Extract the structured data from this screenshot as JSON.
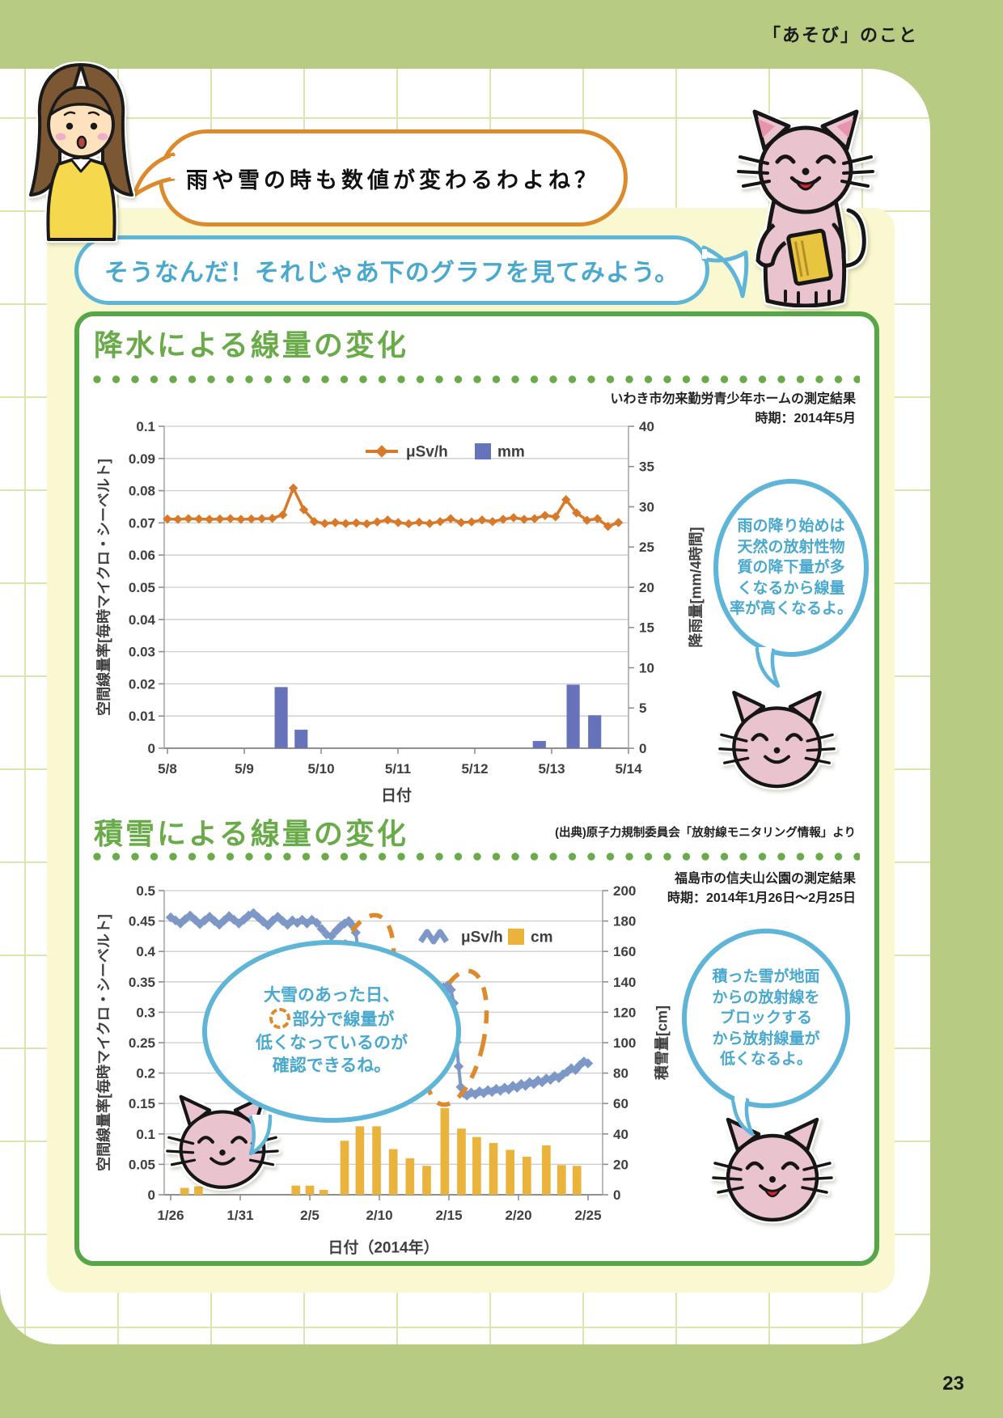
{
  "page": {
    "header": "「あそび」のこと",
    "page_number": "23"
  },
  "girl_bubble": {
    "text": "雨や雪の時も数値が変わるわよね？"
  },
  "cat_bubble": {
    "text": "そうなんだ！それじゃあ下のグラフを見てみよう。"
  },
  "notes": {
    "rain": "雨の降り始めは\n天然の放射性物\n質の降下量が多\nくなるから線量\n率が高くなるよ。",
    "snow_left_lines": [
      "大雪のあった日、",
      "部分で線量が",
      "低くなっているのが",
      "確認できるね。"
    ],
    "snow_right": "積った雪が地面\nからの放射線を\nブロックする\nから放射線量が\n低くなるよ。"
  },
  "colors": {
    "background_olive": "#b8cb83",
    "panel_yellow": "#faf8d0",
    "green_accent": "#68ab48",
    "card_border": "#55a748",
    "bubble_blue": "#5fb5d7",
    "bubble_orange": "#dd8a2b",
    "line_orange": "#d8792a",
    "bar_blue": "#6673bb",
    "line_blue": "#7d97c6",
    "bar_yellow": "#eab43c"
  },
  "chart_data": [
    {
      "type": "line+bar",
      "title": "降水による線量の変化",
      "caption": [
        "いわき市勿来勤労青少年ホームの測定結果",
        "時期：2014年5月"
      ],
      "xlabel": "日付",
      "ylabel_left": "空間線量率[毎時マイクロ・シーベルト]",
      "ylabel_right": "降雨量[mm/4時間]",
      "ylim_left": [
        0,
        0.1
      ],
      "yticks_left": [
        0,
        0.01,
        0.02,
        0.03,
        0.04,
        0.05,
        0.06,
        0.07,
        0.08,
        0.09,
        0.1
      ],
      "ylim_right": [
        0,
        40
      ],
      "yticks_right": [
        0,
        5,
        10,
        15,
        20,
        25,
        30,
        35,
        40
      ],
      "x_categories": [
        "5/8",
        "5/9",
        "5/10",
        "5/11",
        "5/12",
        "5/13",
        "5/14"
      ],
      "x_category_days": [
        0,
        1,
        2,
        3,
        4,
        5,
        6
      ],
      "grid": true,
      "legend": [
        "μSv/h",
        "mm"
      ],
      "line_series": {
        "name": "μSv/h",
        "color": "#d8792a",
        "x_start_day": 0.0,
        "x_step_day": 0.1365,
        "values": [
          0.0712,
          0.0711,
          0.0713,
          0.0712,
          0.0711,
          0.0712,
          0.0713,
          0.0711,
          0.0712,
          0.0713,
          0.0714,
          0.0725,
          0.0808,
          0.0741,
          0.0704,
          0.0698,
          0.0701,
          0.0698,
          0.07,
          0.0697,
          0.0703,
          0.0709,
          0.0701,
          0.0697,
          0.0702,
          0.0698,
          0.0704,
          0.0713,
          0.0701,
          0.0703,
          0.0709,
          0.0704,
          0.0711,
          0.0716,
          0.0711,
          0.0713,
          0.0723,
          0.0719,
          0.0772,
          0.0731,
          0.0708,
          0.0713,
          0.0689,
          0.0701
        ]
      },
      "bar_series": {
        "name": "mm",
        "color": "#6673bb",
        "bar_width_days": 0.17,
        "points": [
          [
            1.48,
            7.6
          ],
          [
            1.74,
            2.3
          ],
          [
            4.84,
            0.9
          ],
          [
            5.28,
            7.9
          ],
          [
            5.56,
            4.1
          ]
        ]
      }
    },
    {
      "type": "line+bar",
      "title": "積雪による線量の変化",
      "source": "(出典)原子力規制委員会「放射線モニタリング情報」より",
      "caption": [
        "福島市の信夫山公園の測定結果",
        "時期：2014年1月26日～2月25日"
      ],
      "xlabel": "日付（2014年）",
      "ylabel_left": "空間線量率[毎時マイクロ・シーベルト]",
      "ylabel_right": "積雪量[cm]",
      "ylim_left": [
        0,
        0.5
      ],
      "yticks_left": [
        0,
        0.05,
        0.1,
        0.15,
        0.2,
        0.25,
        0.3,
        0.35,
        0.4,
        0.45,
        0.5
      ],
      "ylim_right": [
        0,
        200
      ],
      "yticks_right": [
        0,
        20,
        40,
        60,
        80,
        100,
        120,
        140,
        160,
        180,
        200
      ],
      "x_categories": [
        "1/26",
        "1/31",
        "2/5",
        "2/10",
        "2/15",
        "2/20",
        "2/25"
      ],
      "x_category_days": [
        0,
        5,
        10,
        15,
        20,
        25,
        30
      ],
      "grid": true,
      "legend": [
        "μSv/h",
        "cm"
      ],
      "line_series": {
        "name": "μSv/h",
        "color": "#7d97c6",
        "points": [
          [
            0,
            0.456
          ],
          [
            0.35,
            0.451
          ],
          [
            0.7,
            0.446
          ],
          [
            1.05,
            0.453
          ],
          [
            1.4,
            0.459
          ],
          [
            1.75,
            0.452
          ],
          [
            2.1,
            0.445
          ],
          [
            2.45,
            0.451
          ],
          [
            2.8,
            0.457
          ],
          [
            3.15,
            0.45
          ],
          [
            3.5,
            0.444
          ],
          [
            3.85,
            0.451
          ],
          [
            4.2,
            0.458
          ],
          [
            4.55,
            0.452
          ],
          [
            4.9,
            0.446
          ],
          [
            5.25,
            0.452
          ],
          [
            5.6,
            0.459
          ],
          [
            5.95,
            0.463
          ],
          [
            6.3,
            0.456
          ],
          [
            6.65,
            0.449
          ],
          [
            7,
            0.443
          ],
          [
            7.35,
            0.451
          ],
          [
            7.7,
            0.457
          ],
          [
            8.05,
            0.45
          ],
          [
            8.4,
            0.444
          ],
          [
            8.75,
            0.451
          ],
          [
            9.1,
            0.447
          ],
          [
            9.45,
            0.452
          ],
          [
            9.8,
            0.446
          ],
          [
            10.15,
            0.452
          ],
          [
            10.5,
            0.447
          ],
          [
            10.85,
            0.437
          ],
          [
            11.2,
            0.428
          ],
          [
            11.55,
            0.425
          ],
          [
            11.9,
            0.434
          ],
          [
            12.2,
            0.441
          ],
          [
            12.5,
            0.446
          ],
          [
            12.8,
            0.45
          ],
          [
            13.05,
            0.443
          ],
          [
            13.3,
            0.431
          ],
          [
            13.5,
            0.396
          ],
          [
            13.65,
            0.362
          ],
          [
            13.8,
            0.34
          ],
          [
            13.95,
            0.306
          ],
          [
            14.1,
            0.286
          ],
          [
            14.35,
            0.281
          ],
          [
            14.6,
            0.288
          ],
          [
            14.85,
            0.292
          ],
          [
            15.1,
            0.285
          ],
          [
            15.4,
            0.291
          ],
          [
            15.7,
            0.296
          ],
          [
            16,
            0.301
          ],
          [
            16.3,
            0.306
          ],
          [
            16.6,
            0.301
          ],
          [
            16.9,
            0.308
          ],
          [
            17.2,
            0.313
          ],
          [
            17.5,
            0.309
          ],
          [
            17.8,
            0.316
          ],
          [
            18.1,
            0.321
          ],
          [
            18.4,
            0.317
          ],
          [
            18.7,
            0.324
          ],
          [
            19,
            0.33
          ],
          [
            19.3,
            0.336
          ],
          [
            19.6,
            0.341
          ],
          [
            19.9,
            0.344
          ],
          [
            20.15,
            0.337
          ],
          [
            20.35,
            0.315
          ],
          [
            20.55,
            0.251
          ],
          [
            20.7,
            0.211
          ],
          [
            20.85,
            0.177
          ],
          [
            21.05,
            0.167
          ],
          [
            21.3,
            0.163
          ],
          [
            21.6,
            0.168
          ],
          [
            21.9,
            0.165
          ],
          [
            22.2,
            0.17
          ],
          [
            22.5,
            0.167
          ],
          [
            22.8,
            0.172
          ],
          [
            23.1,
            0.169
          ],
          [
            23.4,
            0.174
          ],
          [
            23.7,
            0.171
          ],
          [
            24,
            0.176
          ],
          [
            24.3,
            0.173
          ],
          [
            24.6,
            0.179
          ],
          [
            24.9,
            0.176
          ],
          [
            25.2,
            0.182
          ],
          [
            25.5,
            0.179
          ],
          [
            25.8,
            0.185
          ],
          [
            26.1,
            0.182
          ],
          [
            26.4,
            0.188
          ],
          [
            26.7,
            0.185
          ],
          [
            27,
            0.191
          ],
          [
            27.3,
            0.189
          ],
          [
            27.6,
            0.195
          ],
          [
            27.9,
            0.192
          ],
          [
            28.2,
            0.198
          ],
          [
            28.5,
            0.202
          ],
          [
            28.8,
            0.208
          ],
          [
            29.1,
            0.205
          ],
          [
            29.4,
            0.213
          ],
          [
            29.7,
            0.219
          ],
          [
            30,
            0.216
          ]
        ]
      },
      "bar_series": {
        "name": "cm",
        "color": "#eab43c",
        "bar_width_days": 0.62,
        "points": [
          [
            1,
            4.5
          ],
          [
            2,
            5.5
          ],
          [
            9,
            6
          ],
          [
            10,
            6
          ],
          [
            11,
            3.2
          ],
          [
            12.5,
            35.5
          ],
          [
            13.6,
            45
          ],
          [
            14.8,
            45
          ],
          [
            16,
            30
          ],
          [
            17.2,
            24
          ],
          [
            18.4,
            19
          ],
          [
            19.7,
            57
          ],
          [
            20.9,
            43.5
          ],
          [
            22,
            38
          ],
          [
            23.2,
            34
          ],
          [
            24.4,
            29.5
          ],
          [
            25.6,
            25
          ],
          [
            27,
            32.5
          ],
          [
            28.1,
            19.5
          ],
          [
            29.2,
            19
          ]
        ]
      },
      "annotations": [
        {
          "shape": "ellipse",
          "x_day": 13.8,
          "y": 0.36,
          "rx_day": 2.0,
          "ry": 0.102,
          "rotate": 14,
          "color": "#dd8a2b"
        },
        {
          "shape": "ellipse",
          "x_day": 20.5,
          "y": 0.258,
          "rx_day": 2.0,
          "ry": 0.112,
          "rotate": 12,
          "color": "#dd8a2b"
        }
      ]
    }
  ]
}
